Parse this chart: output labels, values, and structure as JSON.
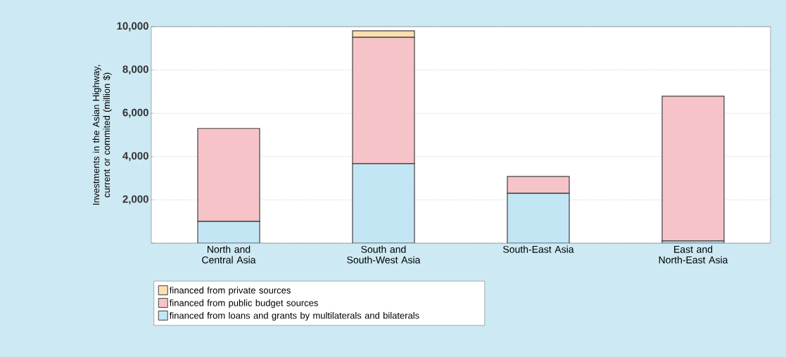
{
  "chart_data": {
    "type": "bar",
    "stacked": true,
    "ylabel": "Investments in the Asian Highway, current or commited (million $)",
    "categories": [
      "North and Central Asia",
      "South and South-West Asia",
      "South-East Asia",
      "East and North-East Asia"
    ],
    "series": [
      {
        "name": "financed from loans and grants by multilaterals and bilaterals",
        "color": "#c3e6f5",
        "values": [
          1000,
          3670,
          2300,
          100
        ]
      },
      {
        "name": "financed from public budget sources",
        "color": "#f6c3c8",
        "values": [
          4300,
          5840,
          780,
          6690
        ]
      },
      {
        "name": "financed from private sources",
        "color": "#fbe0b0",
        "values": [
          0,
          300,
          0,
          0
        ]
      }
    ],
    "ylim": [
      0,
      10000
    ],
    "yticks": [
      {
        "value": 0,
        "label": null
      },
      {
        "value": 2000,
        "label": "2,000"
      },
      {
        "value": 4000,
        "label": "4,000"
      },
      {
        "value": 6000,
        "label": "6,000"
      },
      {
        "value": 8000,
        "label": "8,000"
      },
      {
        "value": 10000,
        "label": "10,000"
      }
    ],
    "grid": "y",
    "legend": "bottom"
  }
}
